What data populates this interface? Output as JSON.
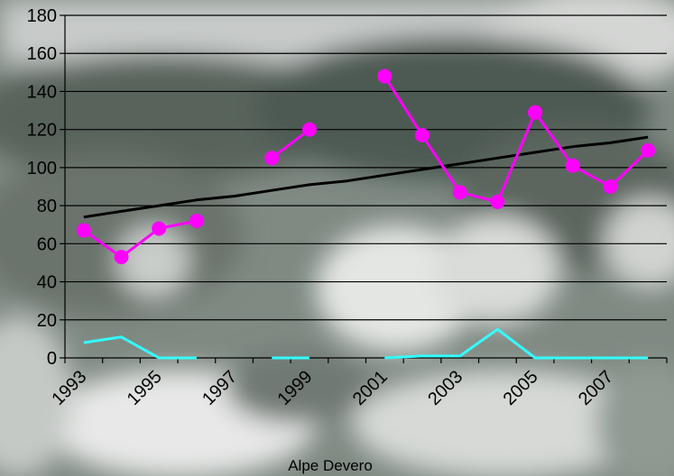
{
  "chart_data": {
    "type": "line",
    "title": "",
    "xlabel": "Alpe Devero",
    "ylabel": "",
    "ylim": [
      0,
      180
    ],
    "yticks": [
      0,
      20,
      40,
      60,
      80,
      100,
      120,
      140,
      160,
      180
    ],
    "xticks": [
      1993,
      1995,
      1997,
      1999,
      2001,
      2003,
      2005,
      2007
    ],
    "x": [
      1993,
      1994,
      1995,
      1996,
      1997,
      1998,
      1999,
      2000,
      2001,
      2002,
      2003,
      2004,
      2005,
      2006,
      2007,
      2008
    ],
    "grid": true,
    "legend": "none",
    "series": [
      {
        "color": "#ff00ff",
        "marker": "circle",
        "values": [
          67,
          53,
          68,
          72,
          null,
          105,
          120,
          null,
          148,
          117,
          87,
          82,
          129,
          101,
          90,
          109
        ]
      },
      {
        "color": "#000000",
        "marker": "none",
        "values": [
          74,
          77,
          80,
          83,
          85,
          88,
          91,
          93,
          96,
          99,
          102,
          105,
          108,
          111,
          113,
          116
        ]
      },
      {
        "color": "#33ffff",
        "marker": "none",
        "values": [
          8,
          11,
          0,
          0,
          null,
          0,
          0,
          null,
          0,
          1,
          1,
          15,
          0,
          0,
          0,
          0
        ]
      }
    ]
  }
}
